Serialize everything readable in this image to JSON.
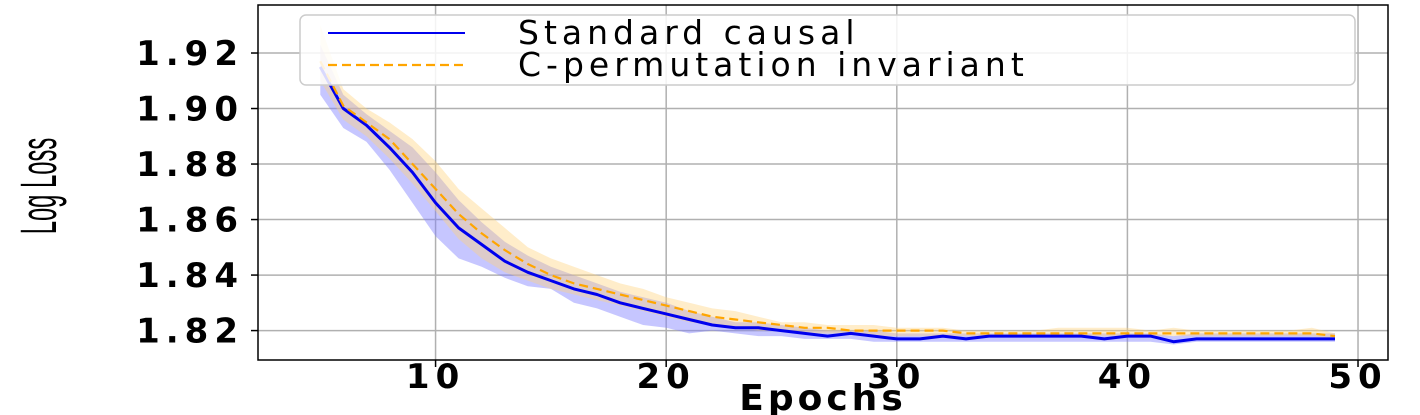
{
  "chart_data": {
    "type": "line",
    "xlabel": "Epochs",
    "ylabel": "Log Loss",
    "xlim": [
      2.3,
      51.3
    ],
    "ylim": [
      1.8094,
      1.9373
    ],
    "xticks": [
      10,
      20,
      30,
      40,
      50
    ],
    "yticks": [
      1.82,
      1.84,
      1.86,
      1.88,
      1.9,
      1.92
    ],
    "xtick_labels": [
      "10",
      "20",
      "30",
      "40",
      "50"
    ],
    "ytick_labels": [
      "1.82",
      "1.84",
      "1.86",
      "1.88",
      "1.90",
      "1.92"
    ],
    "grid": true,
    "legend_position": "top-right",
    "x": [
      5,
      6,
      7,
      8,
      9,
      10,
      11,
      12,
      13,
      14,
      15,
      16,
      17,
      18,
      19,
      20,
      21,
      22,
      23,
      24,
      25,
      26,
      27,
      28,
      29,
      30,
      31,
      32,
      33,
      34,
      35,
      36,
      37,
      38,
      39,
      40,
      41,
      42,
      43,
      44,
      45,
      46,
      47,
      48,
      49
    ],
    "series": [
      {
        "name": "Standard causal",
        "color": "#0000ee",
        "style": "solid",
        "band_color": "#8080ff",
        "values": [
          1.915,
          1.9,
          1.894,
          1.886,
          1.877,
          1.866,
          1.857,
          1.851,
          1.845,
          1.841,
          1.838,
          1.835,
          1.833,
          1.83,
          1.828,
          1.826,
          1.824,
          1.822,
          1.821,
          1.821,
          1.82,
          1.819,
          1.818,
          1.819,
          1.818,
          1.817,
          1.817,
          1.818,
          1.817,
          1.818,
          1.818,
          1.818,
          1.818,
          1.818,
          1.817,
          1.818,
          1.818,
          1.816,
          1.817,
          1.817,
          1.817,
          1.817,
          1.817,
          1.817,
          1.817
        ],
        "lower": [
          1.905,
          1.893,
          1.888,
          1.878,
          1.866,
          1.854,
          1.846,
          1.843,
          1.839,
          1.836,
          1.835,
          1.83,
          1.828,
          1.825,
          1.822,
          1.821,
          1.819,
          1.82,
          1.819,
          1.818,
          1.818,
          1.817,
          1.817,
          1.817,
          1.816,
          1.816,
          1.816,
          1.816,
          1.816,
          1.816,
          1.816,
          1.816,
          1.816,
          1.816,
          1.816,
          1.816,
          1.816,
          1.815,
          1.816,
          1.816,
          1.816,
          1.816,
          1.816,
          1.816,
          1.816
        ],
        "upper": [
          1.923,
          1.905,
          1.898,
          1.892,
          1.886,
          1.877,
          1.867,
          1.859,
          1.852,
          1.847,
          1.843,
          1.84,
          1.837,
          1.834,
          1.832,
          1.83,
          1.827,
          1.825,
          1.823,
          1.823,
          1.822,
          1.821,
          1.82,
          1.82,
          1.82,
          1.819,
          1.819,
          1.819,
          1.819,
          1.819,
          1.819,
          1.819,
          1.819,
          1.819,
          1.819,
          1.819,
          1.819,
          1.818,
          1.819,
          1.819,
          1.819,
          1.819,
          1.819,
          1.819,
          1.819
        ]
      },
      {
        "name": "C-permutation invariant",
        "color": "#ffa500",
        "style": "dashed",
        "band_color": "#ffd27a",
        "values": [
          1.917,
          1.901,
          1.895,
          1.889,
          1.88,
          1.871,
          1.862,
          1.855,
          1.849,
          1.844,
          1.84,
          1.837,
          1.835,
          1.833,
          1.831,
          1.829,
          1.827,
          1.825,
          1.824,
          1.823,
          1.822,
          1.821,
          1.821,
          1.82,
          1.82,
          1.82,
          1.82,
          1.82,
          1.819,
          1.819,
          1.819,
          1.819,
          1.819,
          1.819,
          1.819,
          1.819,
          1.819,
          1.819,
          1.819,
          1.819,
          1.819,
          1.819,
          1.819,
          1.819,
          1.818
        ],
        "lower": [
          1.91,
          1.896,
          1.89,
          1.882,
          1.873,
          1.863,
          1.853,
          1.846,
          1.841,
          1.838,
          1.835,
          1.833,
          1.831,
          1.829,
          1.827,
          1.825,
          1.823,
          1.822,
          1.821,
          1.82,
          1.82,
          1.819,
          1.819,
          1.819,
          1.818,
          1.818,
          1.818,
          1.818,
          1.818,
          1.818,
          1.818,
          1.818,
          1.818,
          1.818,
          1.818,
          1.818,
          1.818,
          1.818,
          1.818,
          1.818,
          1.818,
          1.818,
          1.818,
          1.818,
          1.817
        ],
        "upper": [
          1.93,
          1.907,
          1.9,
          1.895,
          1.889,
          1.881,
          1.871,
          1.864,
          1.857,
          1.85,
          1.846,
          1.843,
          1.84,
          1.837,
          1.835,
          1.832,
          1.83,
          1.828,
          1.827,
          1.825,
          1.823,
          1.823,
          1.822,
          1.822,
          1.822,
          1.821,
          1.821,
          1.821,
          1.82,
          1.82,
          1.82,
          1.82,
          1.821,
          1.821,
          1.821,
          1.821,
          1.82,
          1.821,
          1.82,
          1.82,
          1.82,
          1.82,
          1.82,
          1.821,
          1.819
        ]
      }
    ]
  }
}
